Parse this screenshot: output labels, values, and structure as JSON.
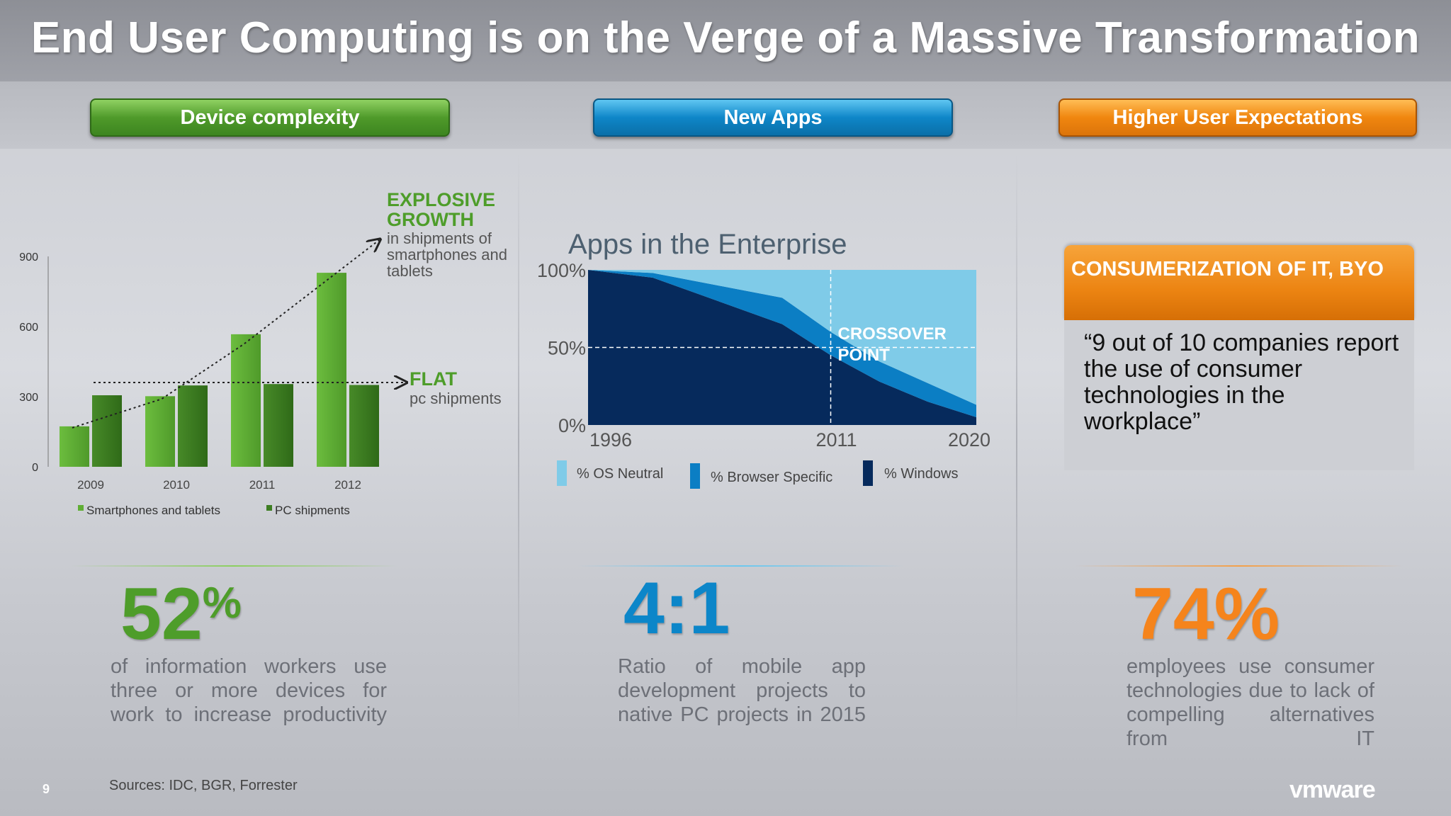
{
  "title": "End User Computing is on the Verge of a Massive Transformation",
  "pills": {
    "device": "Device complexity",
    "apps": "New Apps",
    "user": "Higher User Expectations"
  },
  "chart_data": [
    {
      "type": "bar",
      "categories": [
        "2009",
        "2010",
        "2011",
        "2012"
      ],
      "series": [
        {
          "name": "Smartphones and tablets",
          "values": [
            173,
            302,
            567,
            830
          ]
        },
        {
          "name": "PC shipments",
          "values": [
            306,
            348,
            354,
            350
          ]
        }
      ],
      "y_ticks": [
        "0",
        "300",
        "600",
        "900"
      ],
      "ylim": [
        0,
        900
      ],
      "legend": "bottom",
      "annotations": [
        {
          "heading": "EXPLOSIVE GROWTH",
          "text": "in shipments of smartphones and tablets"
        },
        {
          "heading": "FLAT",
          "text": "pc shipments"
        }
      ],
      "colors": {
        "Smartphones and tablets": "#5fae34",
        "PC shipments": "#3d7d22"
      }
    },
    {
      "type": "area",
      "title": "Apps in the Enterprise",
      "x": [
        1996,
        2000,
        2004,
        2008,
        2011,
        2014,
        2017,
        2020
      ],
      "series": [
        {
          "name": "% Windows",
          "values": [
            100,
            95,
            80,
            65,
            45,
            28,
            15,
            5
          ]
        },
        {
          "name": "% Browser Specific",
          "values": [
            0,
            3,
            10,
            17,
            15,
            13,
            12,
            8
          ]
        },
        {
          "name": "% OS Neutral",
          "values": [
            0,
            2,
            10,
            18,
            40,
            59,
            73,
            87
          ]
        }
      ],
      "x_ticks": [
        "1996",
        "2011",
        "2020"
      ],
      "y_ticks": [
        "0%",
        "50%",
        "100%"
      ],
      "ylim": [
        0,
        100
      ],
      "annotation": "CROSSOVER POINT",
      "legend": "bottom",
      "colors": {
        "% Windows": "#062a5c",
        "% Browser Specific": "#0b7ec4",
        "% OS Neutral": "#7fcbe8"
      }
    }
  ],
  "stats": {
    "device": {
      "value": "52",
      "unit": "%",
      "text": "of information workers use three or more devices for work to increase productivity",
      "color": "#4e9d2a"
    },
    "apps": {
      "value": "4:1",
      "text": "Ratio of mobile app development projects to native PC projects in 2015",
      "color": "#0c86c9"
    },
    "user": {
      "value": "74%",
      "text": "employees use consumer technologies due to lack of compelling alternatives from IT",
      "color": "#f5841c"
    }
  },
  "quote": {
    "heading": "CONSUMERIZATION OF IT, BYO",
    "text": "“9 out of 10 companies report the use of consumer technologies in the workplace”"
  },
  "footer": {
    "sources": "Sources: IDC, BGR, Forrester",
    "page": "9",
    "logo": "vmware"
  }
}
